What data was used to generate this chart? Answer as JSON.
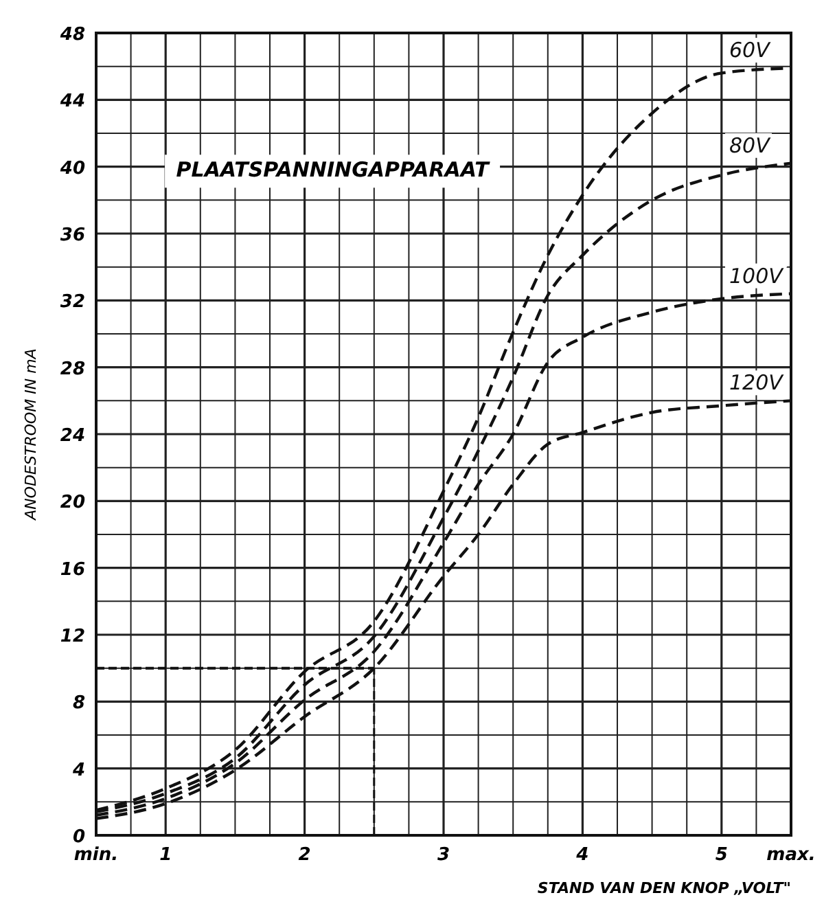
{
  "chart_data": {
    "type": "line",
    "title": "PLAATSPANNINGAPPARAAT",
    "xlabel": "STAND  VAN DEN KNOP „VOLT\"",
    "ylabel": "ANODESTROOM  IN  mA",
    "x": [
      0.5,
      1,
      1.5,
      2,
      2.5,
      3,
      3.25,
      3.5,
      3.75,
      4,
      4.5,
      5,
      5.5
    ],
    "series": [
      {
        "name": "60V",
        "color": "#111111",
        "values": [
          1.5,
          2.8,
          5.1,
          9.8,
          12.8,
          20.6,
          25,
          30.1,
          34.7,
          38.3,
          43.2,
          45.6,
          45.9
        ]
      },
      {
        "name": "80V",
        "color": "#111111",
        "values": [
          1.4,
          2.5,
          4.6,
          9.0,
          11.9,
          19,
          23,
          27.4,
          32.3,
          34.7,
          38,
          39.5,
          40.2
        ]
      },
      {
        "name": "100V",
        "color": "#111111",
        "values": [
          1.2,
          2.2,
          4.3,
          8.1,
          11.0,
          17.5,
          21,
          24,
          28.3,
          29.8,
          31.3,
          32.1,
          32.4
        ]
      },
      {
        "name": "120V",
        "color": "#111111",
        "values": [
          1.0,
          1.9,
          3.9,
          7.1,
          10,
          15.5,
          18,
          21,
          23.4,
          24.1,
          25.3,
          25.7,
          26
        ]
      }
    ],
    "xlim": [
      0.5,
      5.5
    ],
    "ylim": [
      0,
      48
    ],
    "xticks": [
      {
        "value": 0.5,
        "label": "min."
      },
      {
        "value": 0.75,
        "label": null
      },
      1,
      {
        "value": 1.25,
        "label": null
      },
      {
        "value": 1.5,
        "label": null
      },
      {
        "value": 1.75,
        "label": null
      },
      2,
      {
        "value": 2.25,
        "label": null
      },
      {
        "value": 2.5,
        "label": null
      },
      {
        "value": 2.75,
        "label": null
      },
      3,
      {
        "value": 3.25,
        "label": null
      },
      {
        "value": 3.5,
        "label": null
      },
      {
        "value": 3.75,
        "label": null
      },
      4,
      {
        "value": 4.25,
        "label": null
      },
      {
        "value": 4.5,
        "label": null
      },
      {
        "value": 4.75,
        "label": null
      },
      5,
      {
        "value": 5.25,
        "label": null
      },
      {
        "value": 5.5,
        "label": "max."
      }
    ],
    "yticks": [
      0,
      {
        "value": 2,
        "label": null
      },
      4,
      {
        "value": 6,
        "label": null
      },
      8,
      {
        "value": 10,
        "label": null
      },
      12,
      {
        "value": 14,
        "label": null
      },
      16,
      {
        "value": 18,
        "label": null
      },
      20,
      {
        "value": 22,
        "label": null
      },
      24,
      {
        "value": 26,
        "label": null
      },
      28,
      {
        "value": 30,
        "label": null
      },
      32,
      {
        "value": 34,
        "label": null
      },
      36,
      {
        "value": 38,
        "label": null
      },
      40,
      {
        "value": 42,
        "label": null
      },
      44,
      {
        "value": 46,
        "label": null
      },
      48
    ],
    "grid": true,
    "line_style": "dashed",
    "marker": "none",
    "ref_lines": [
      {
        "axis": "y",
        "value": 10
      },
      {
        "axis": "x",
        "value": 2.5
      }
    ]
  }
}
